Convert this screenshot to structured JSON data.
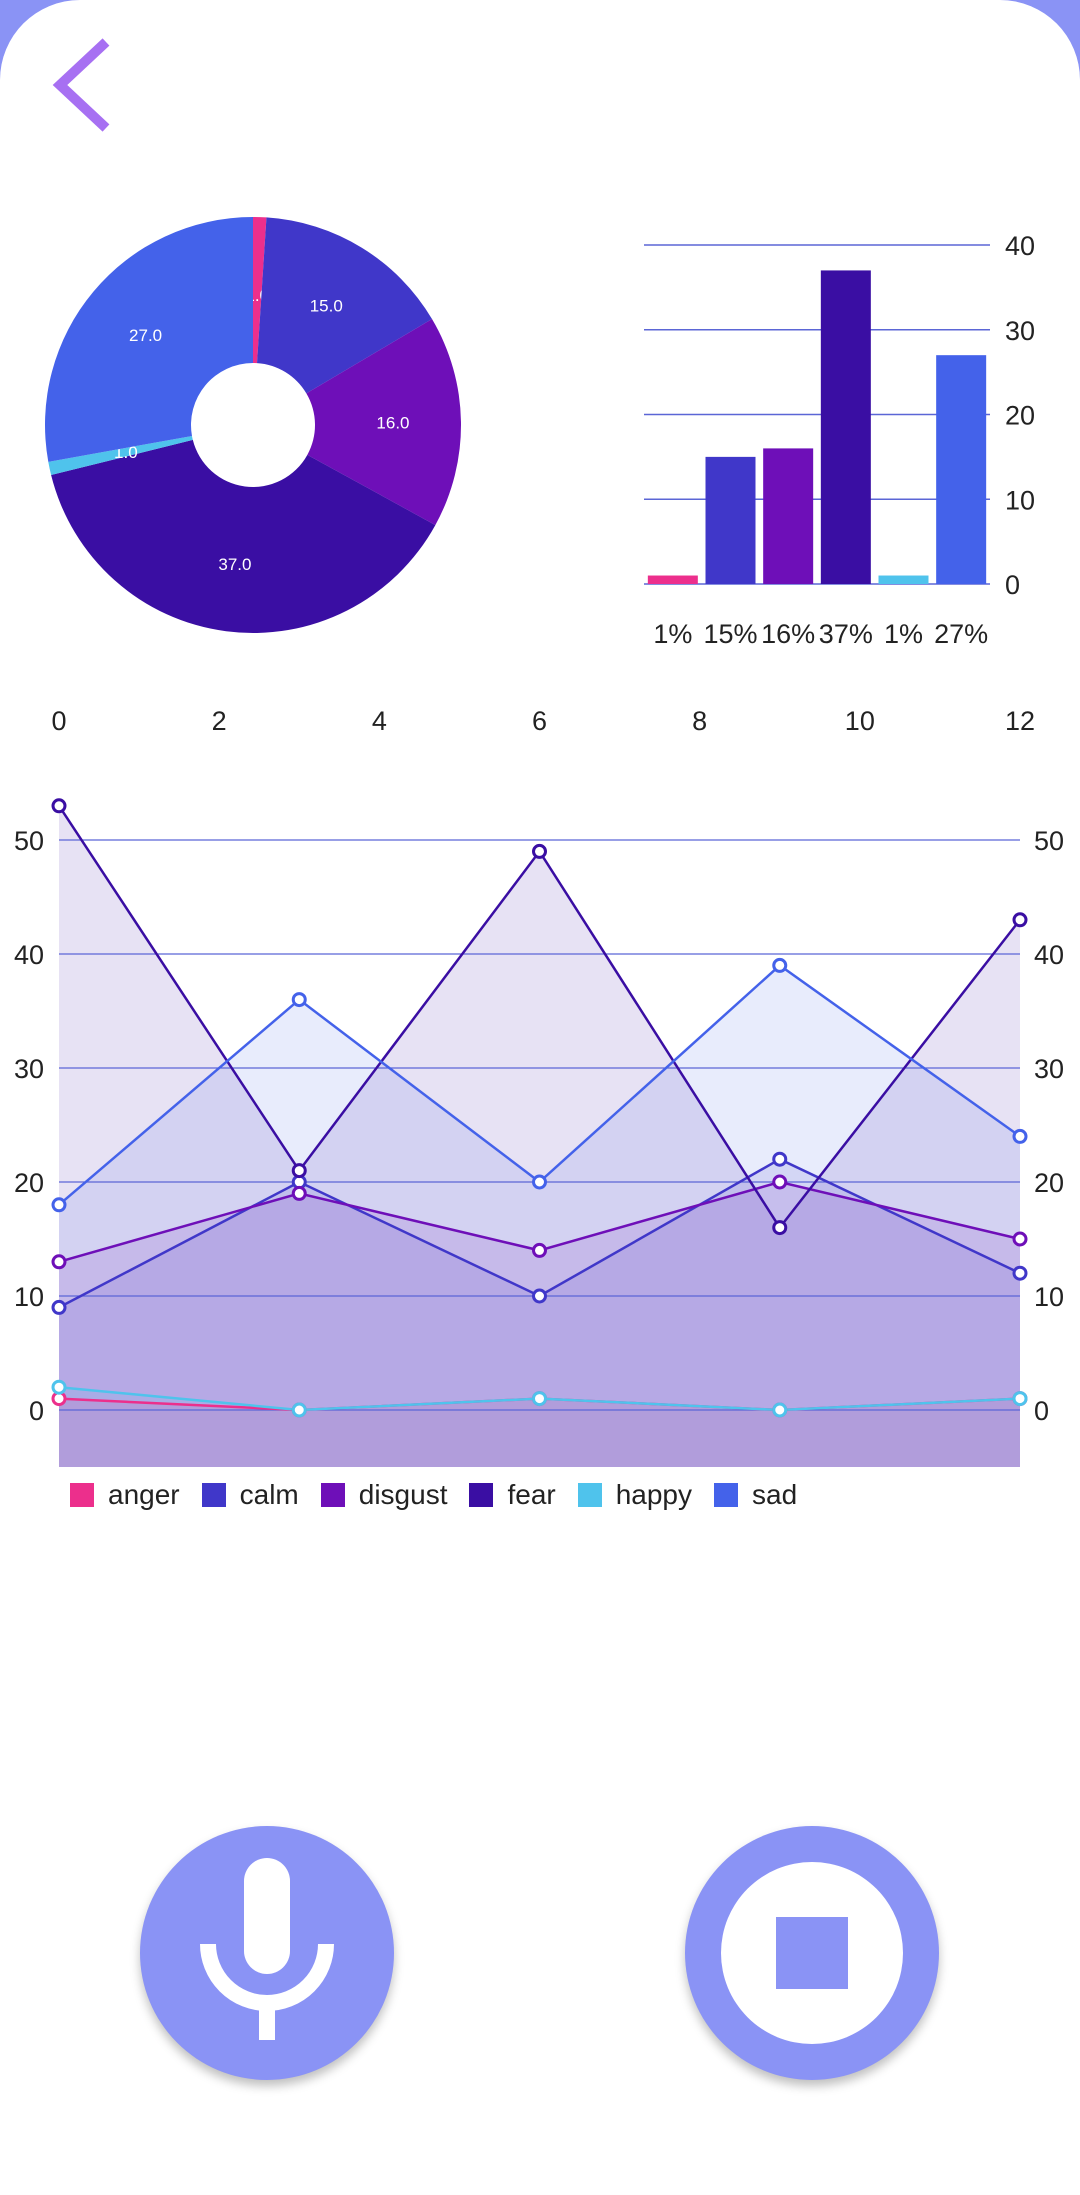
{
  "colors": {
    "background": "#8a93f5",
    "accent": "#a770f2",
    "button": "#8a93f5",
    "gridline": "#5b66d6"
  },
  "icons": {
    "back": "chevron-left-icon",
    "record": "microphone-icon",
    "stop": "stop-icon"
  },
  "chart_data": [
    {
      "type": "pie",
      "donut": true,
      "labels": [
        "anger",
        "calm",
        "disgust",
        "fear",
        "happy",
        "sad"
      ],
      "values": [
        1.0,
        15.0,
        16.0,
        37.0,
        1.0,
        27.0
      ],
      "slice_labels": [
        "1.0",
        "15.0",
        "16.0",
        "37.0",
        "1.0",
        "27.0"
      ],
      "colors": [
        "#ec2f8c",
        "#4037c9",
        "#6e0fb8",
        "#3a0ea3",
        "#4fc3ec",
        "#4462ea"
      ]
    },
    {
      "type": "bar",
      "categories": [
        "1%",
        "15%",
        "16%",
        "37%",
        "1%",
        "27%"
      ],
      "values": [
        1,
        15,
        16,
        37,
        1,
        27
      ],
      "colors": [
        "#ec2f8c",
        "#4037c9",
        "#6e0fb8",
        "#3a0ea3",
        "#4fc3ec",
        "#4462ea"
      ],
      "ylim": [
        0,
        40
      ],
      "yticks": [
        0,
        10,
        20,
        30,
        40
      ],
      "y_axis_side": "right",
      "grid": true
    },
    {
      "type": "area",
      "x_ticks_top": [
        "0",
        "2",
        "4",
        "6",
        "8",
        "10",
        "12"
      ],
      "xlim": [
        0,
        12
      ],
      "ylim": [
        -5,
        55
      ],
      "yticks": [
        "0",
        "10",
        "20",
        "30",
        "40",
        "50"
      ],
      "y_axis_sides": [
        "left",
        "right"
      ],
      "grid": true,
      "x": [
        0,
        3,
        6,
        9,
        12
      ],
      "series": [
        {
          "name": "anger",
          "color": "#ec2f8c",
          "values": [
            1,
            0,
            1,
            0,
            1
          ]
        },
        {
          "name": "calm",
          "color": "#4037c9",
          "values": [
            9,
            20,
            10,
            22,
            12
          ]
        },
        {
          "name": "disgust",
          "color": "#6e0fb8",
          "values": [
            13,
            19,
            14,
            20,
            15
          ]
        },
        {
          "name": "fear",
          "color": "#3a0ea3",
          "values": [
            53,
            21,
            49,
            16,
            43
          ]
        },
        {
          "name": "happy",
          "color": "#4fc3ec",
          "values": [
            2,
            0,
            1,
            0,
            1
          ]
        },
        {
          "name": "sad",
          "color": "#4462ea",
          "values": [
            18,
            36,
            20,
            39,
            24
          ]
        }
      ],
      "legend": [
        "anger",
        "calm",
        "disgust",
        "fear",
        "happy",
        "sad"
      ],
      "legend_position": "bottom-left"
    }
  ]
}
